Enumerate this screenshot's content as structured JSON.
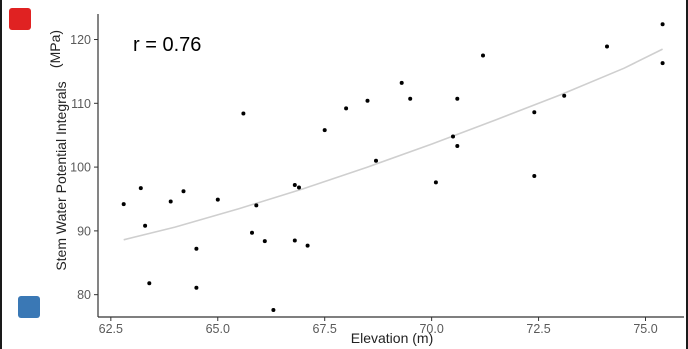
{
  "legend_swatches": {
    "top_color": "#e02222",
    "bottom_color": "#3a78b5"
  },
  "chart_data": {
    "type": "scatter",
    "title": "",
    "xlabel": "Elevation (m)",
    "ylabel": "Stem Water Potential Integrals",
    "ylabel_unit": "(MPa)",
    "annotation": "r = 0.76",
    "xlim": [
      62.2,
      75.9
    ],
    "ylim": [
      76.5,
      124
    ],
    "xticks": [
      62.5,
      65.0,
      67.5,
      70.0,
      72.5,
      75.0
    ],
    "xtick_labels": [
      "62.5",
      "65.0",
      "67.5",
      "70.0",
      "72.5",
      "75.0"
    ],
    "yticks": [
      80,
      90,
      100,
      110,
      120
    ],
    "ytick_labels": [
      "80",
      "90",
      "100",
      "110",
      "120"
    ],
    "grid": false,
    "point_color": "#000000",
    "trend_color": "#cfcfcf",
    "points": [
      {
        "x": 62.8,
        "y": 94.2
      },
      {
        "x": 63.2,
        "y": 96.7
      },
      {
        "x": 63.3,
        "y": 90.8
      },
      {
        "x": 63.4,
        "y": 81.8
      },
      {
        "x": 63.9,
        "y": 94.6
      },
      {
        "x": 64.2,
        "y": 96.2
      },
      {
        "x": 64.5,
        "y": 87.2
      },
      {
        "x": 64.5,
        "y": 81.1
      },
      {
        "x": 65.0,
        "y": 94.9
      },
      {
        "x": 65.6,
        "y": 108.4
      },
      {
        "x": 65.8,
        "y": 89.7
      },
      {
        "x": 65.9,
        "y": 94.0
      },
      {
        "x": 66.1,
        "y": 88.4
      },
      {
        "x": 66.3,
        "y": 77.6
      },
      {
        "x": 66.8,
        "y": 97.2
      },
      {
        "x": 66.8,
        "y": 88.5
      },
      {
        "x": 66.9,
        "y": 96.8
      },
      {
        "x": 67.1,
        "y": 87.7
      },
      {
        "x": 67.5,
        "y": 105.8
      },
      {
        "x": 68.0,
        "y": 109.2
      },
      {
        "x": 68.5,
        "y": 110.4
      },
      {
        "x": 68.7,
        "y": 101.0
      },
      {
        "x": 69.3,
        "y": 113.2
      },
      {
        "x": 69.5,
        "y": 110.7
      },
      {
        "x": 70.1,
        "y": 97.6
      },
      {
        "x": 70.5,
        "y": 104.8
      },
      {
        "x": 70.6,
        "y": 110.7
      },
      {
        "x": 70.6,
        "y": 103.3
      },
      {
        "x": 71.2,
        "y": 117.5
      },
      {
        "x": 72.4,
        "y": 108.6
      },
      {
        "x": 72.4,
        "y": 98.6
      },
      {
        "x": 73.1,
        "y": 111.2
      },
      {
        "x": 74.1,
        "y": 118.9
      },
      {
        "x": 75.4,
        "y": 122.4
      },
      {
        "x": 75.4,
        "y": 116.3
      }
    ],
    "trend_line": {
      "x": [
        62.8,
        64.0,
        65.5,
        67.0,
        68.5,
        70.0,
        71.5,
        73.0,
        74.5,
        75.4
      ],
      "y": [
        88.6,
        90.6,
        93.5,
        96.6,
        100.0,
        103.6,
        107.4,
        111.3,
        115.5,
        118.5
      ]
    }
  }
}
